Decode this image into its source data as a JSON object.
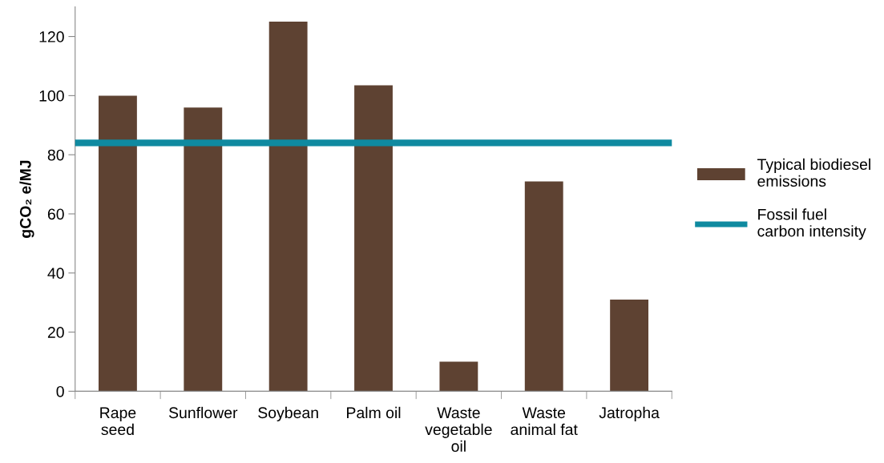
{
  "chart_data": {
    "type": "bar",
    "categories": [
      "Rape\nseed",
      "Sunflower",
      "Soybean",
      "Palm oil",
      "Waste\nvegetable\noil",
      "Waste\nanimal fat",
      "Jatropha"
    ],
    "series": [
      {
        "name": "Typical biodiesel\nemissions",
        "color": "#5e4232",
        "values": [
          100,
          96,
          125,
          103.5,
          10,
          71,
          31
        ]
      }
    ],
    "ref_lines": [
      {
        "axis": "y",
        "value": 84,
        "label": "Fossil fuel\ncarbon intensity",
        "color": "#0f8aa0",
        "line_style": "solid"
      }
    ],
    "ylabel": "gCO₂ e/MJ",
    "ylim": [
      0,
      130
    ],
    "yticks": [
      0,
      20,
      40,
      60,
      80,
      100,
      120
    ],
    "grid": false,
    "legend": "right"
  }
}
